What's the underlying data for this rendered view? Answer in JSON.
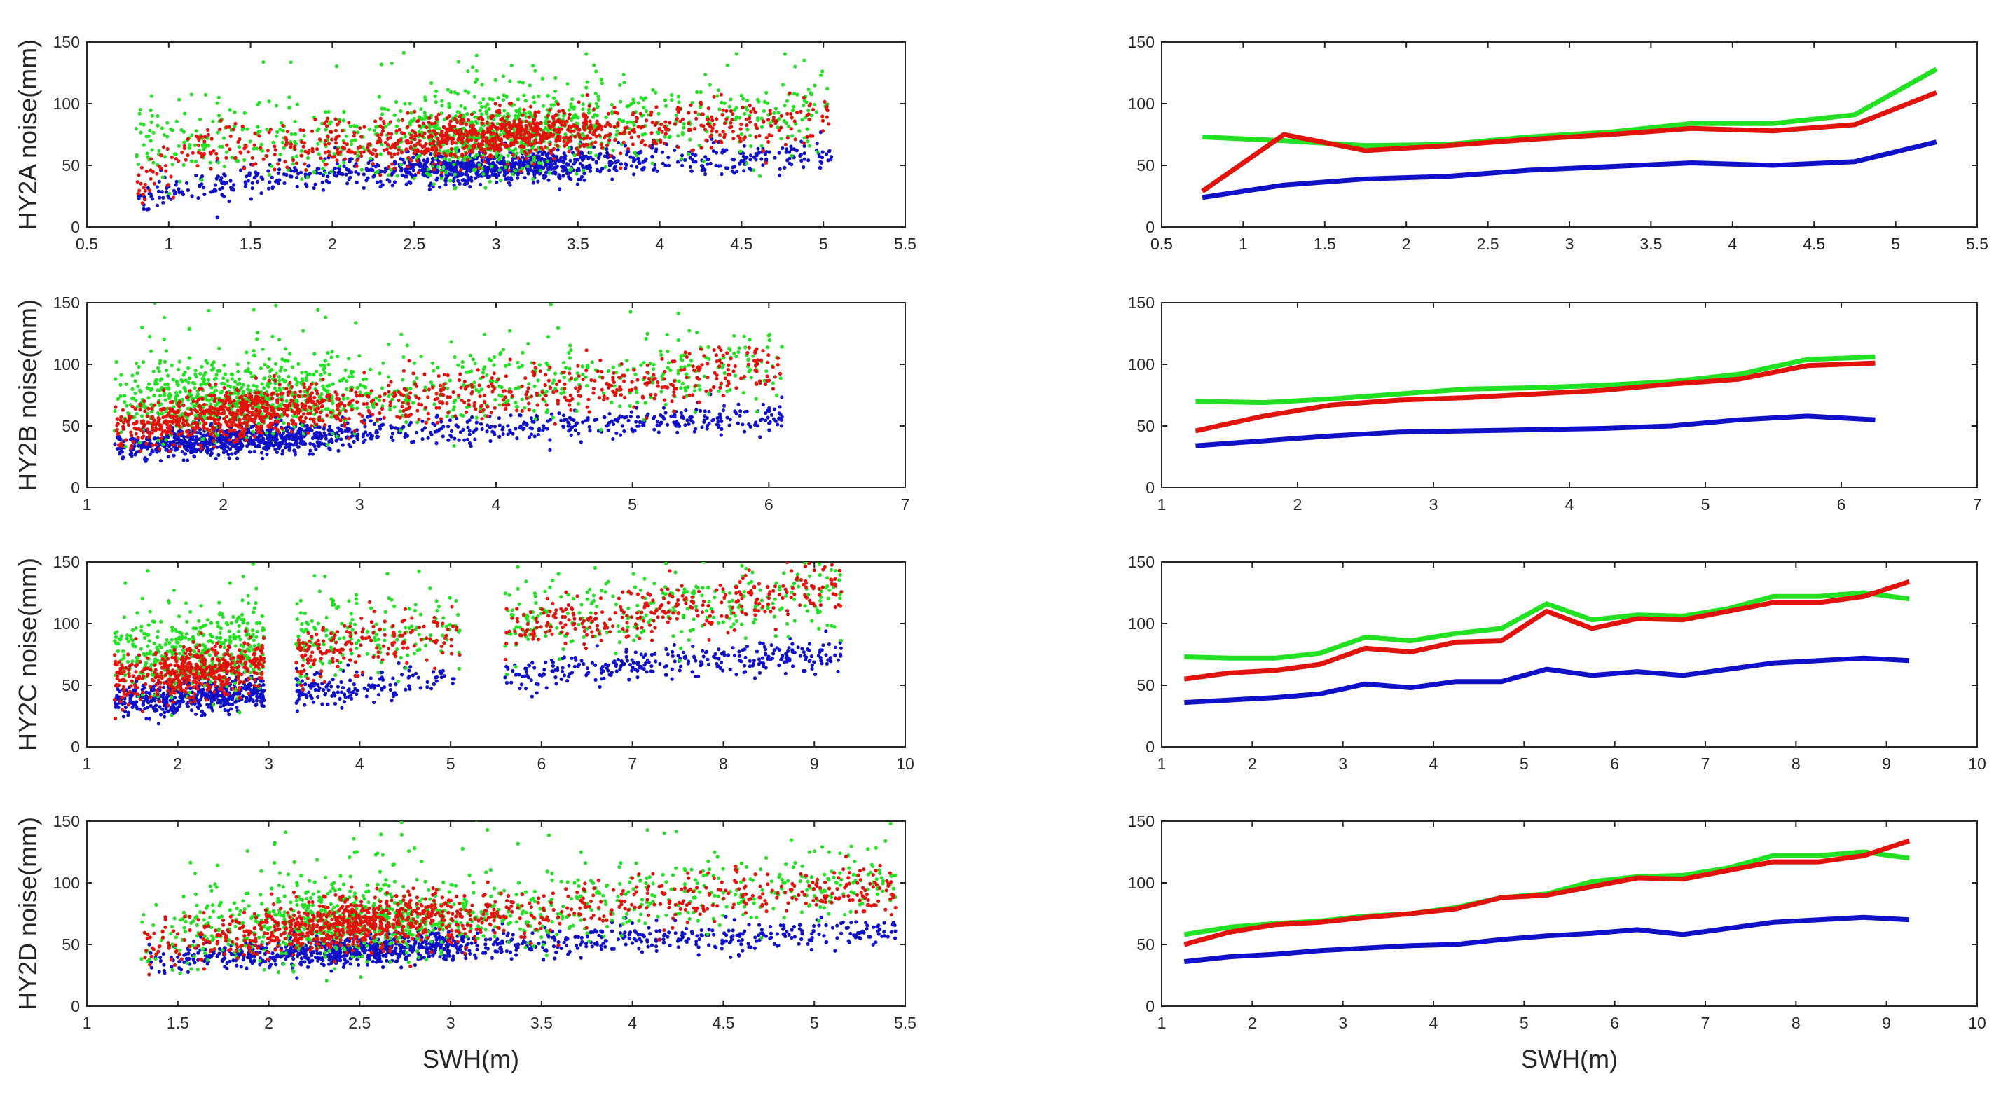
{
  "figure": {
    "xlabel_left": "SWH(m)",
    "xlabel_right": "SWH(m)"
  },
  "colors": {
    "blue": "#1010c8",
    "red": "#e0140c",
    "green": "#22e022"
  },
  "chart_data": [
    {
      "type": "scatter",
      "panel": "HY2A",
      "ylabel": "HY2A noise(mm)",
      "xlim": [
        0.5,
        5.5
      ],
      "ylim": [
        0,
        150
      ],
      "xticks": [
        "0.5",
        "1",
        "1.5",
        "2",
        "2.5",
        "3",
        "3.5",
        "4",
        "4.5",
        "5",
        "5.5"
      ],
      "yticks": [
        "0",
        "50",
        "100",
        "150"
      ],
      "x_range": [
        0.8,
        5.05
      ],
      "density_peak": 3.0,
      "series": [
        {
          "name": "blue",
          "trend": [
            [
              0.8,
              24
            ],
            [
              1.75,
              40
            ],
            [
              2.75,
              45
            ],
            [
              3.75,
              52
            ],
            [
              4.75,
              54
            ],
            [
              5.05,
              58
            ]
          ],
          "spread": 9
        },
        {
          "name": "green",
          "trend": [
            [
              0.8,
              72
            ],
            [
              1.75,
              68
            ],
            [
              2.75,
              72
            ],
            [
              3.75,
              84
            ],
            [
              4.75,
              90
            ],
            [
              5.05,
              95
            ]
          ],
          "spread": 22
        },
        {
          "name": "red",
          "trend": [
            [
              0.8,
              30
            ],
            [
              1.25,
              72
            ],
            [
              1.75,
              62
            ],
            [
              2.75,
              72
            ],
            [
              3.75,
              80
            ],
            [
              4.75,
              84
            ],
            [
              5.05,
              88
            ]
          ],
          "spread": 14
        }
      ]
    },
    {
      "type": "line",
      "panel": "HY2A",
      "xlim": [
        0.5,
        5.5
      ],
      "ylim": [
        0,
        150
      ],
      "xticks": [
        "0.5",
        "1",
        "1.5",
        "2",
        "2.5",
        "3",
        "3.5",
        "4",
        "4.5",
        "5",
        "5.5"
      ],
      "yticks": [
        "0",
        "50",
        "100",
        "150"
      ],
      "x": [
        0.75,
        1.25,
        1.75,
        2.25,
        2.75,
        3.25,
        3.75,
        4.25,
        4.75,
        5.25
      ],
      "series": [
        {
          "name": "blue",
          "values": [
            24,
            34,
            39,
            41,
            46,
            49,
            52,
            50,
            53,
            69
          ]
        },
        {
          "name": "green",
          "values": [
            73,
            70,
            66,
            67,
            73,
            77,
            84,
            84,
            91,
            128
          ]
        },
        {
          "name": "red",
          "values": [
            29,
            75,
            62,
            66,
            71,
            75,
            80,
            78,
            83,
            109
          ]
        }
      ]
    },
    {
      "type": "scatter",
      "panel": "HY2B",
      "ylabel": "HY2B noise(mm)",
      "xlim": [
        1,
        7
      ],
      "ylim": [
        0,
        150
      ],
      "xticks": [
        "1",
        "2",
        "3",
        "4",
        "5",
        "6",
        "7"
      ],
      "yticks": [
        "0",
        "50",
        "100",
        "150"
      ],
      "x_range": [
        1.2,
        6.1
      ],
      "density_peak": 2.1,
      "series": [
        {
          "name": "blue",
          "trend": [
            [
              1.2,
              32
            ],
            [
              2.25,
              38
            ],
            [
              3.25,
              44
            ],
            [
              4.25,
              48
            ],
            [
              5.25,
              52
            ],
            [
              6.1,
              56
            ]
          ],
          "spread": 8
        },
        {
          "name": "green",
          "trend": [
            [
              1.2,
              70
            ],
            [
              2.25,
              72
            ],
            [
              3.25,
              78
            ],
            [
              4.25,
              82
            ],
            [
              5.25,
              92
            ],
            [
              6.1,
              104
            ]
          ],
          "spread": 20
        },
        {
          "name": "red",
          "trend": [
            [
              1.2,
              46
            ],
            [
              2.25,
              62
            ],
            [
              3.25,
              70
            ],
            [
              4.25,
              78
            ],
            [
              5.25,
              86
            ],
            [
              6.1,
              100
            ]
          ],
          "spread": 14
        }
      ]
    },
    {
      "type": "line",
      "panel": "HY2B",
      "xlim": [
        1,
        7
      ],
      "ylim": [
        0,
        150
      ],
      "xticks": [
        "1",
        "2",
        "3",
        "4",
        "5",
        "6",
        "7"
      ],
      "yticks": [
        "0",
        "50",
        "100",
        "150"
      ],
      "x": [
        1.25,
        1.75,
        2.25,
        2.75,
        3.25,
        3.75,
        4.25,
        4.75,
        5.25,
        5.75,
        6.25
      ],
      "series": [
        {
          "name": "blue",
          "values": [
            34,
            38,
            42,
            45,
            46,
            47,
            48,
            50,
            55,
            58,
            55
          ]
        },
        {
          "name": "green",
          "values": [
            70,
            69,
            72,
            76,
            80,
            81,
            83,
            86,
            92,
            104,
            106
          ]
        },
        {
          "name": "red",
          "values": [
            46,
            58,
            67,
            71,
            73,
            76,
            79,
            84,
            88,
            99,
            101
          ]
        }
      ]
    },
    {
      "type": "scatter",
      "panel": "HY2C",
      "ylabel": "HY2C noise(mm)",
      "xlim": [
        1,
        10
      ],
      "ylim": [
        0,
        150
      ],
      "xticks": [
        "1",
        "2",
        "3",
        "4",
        "5",
        "6",
        "7",
        "8",
        "9",
        "10"
      ],
      "yticks": [
        "0",
        "50",
        "100",
        "150"
      ],
      "x_range": [
        1.3,
        9.3
      ],
      "density_peak": 2.4,
      "gaps": [
        [
          2.95,
          3.3
        ],
        [
          5.1,
          5.6
        ]
      ],
      "series": [
        {
          "name": "blue",
          "trend": [
            [
              1.3,
              36
            ],
            [
              2.5,
              40
            ],
            [
              4.25,
              48
            ],
            [
              6.25,
              60
            ],
            [
              8.25,
              70
            ],
            [
              9.3,
              72
            ]
          ],
          "spread": 9
        },
        {
          "name": "green",
          "trend": [
            [
              1.3,
              74
            ],
            [
              2.5,
              74
            ],
            [
              4.25,
              92
            ],
            [
              6.25,
              106
            ],
            [
              8.25,
              122
            ],
            [
              9.3,
              122
            ]
          ],
          "spread": 22
        },
        {
          "name": "red",
          "trend": [
            [
              1.3,
              55
            ],
            [
              2.5,
              64
            ],
            [
              4.25,
              84
            ],
            [
              6.25,
              102
            ],
            [
              8.25,
              118
            ],
            [
              9.3,
              130
            ]
          ],
          "spread": 16
        }
      ]
    },
    {
      "type": "line",
      "panel": "HY2C",
      "xlim": [
        1,
        10
      ],
      "ylim": [
        0,
        150
      ],
      "xticks": [
        "1",
        "2",
        "3",
        "4",
        "5",
        "6",
        "7",
        "8",
        "9",
        "10"
      ],
      "yticks": [
        "0",
        "50",
        "100",
        "150"
      ],
      "x": [
        1.25,
        1.75,
        2.25,
        2.75,
        3.25,
        3.75,
        4.25,
        4.75,
        5.25,
        5.75,
        6.25,
        6.75,
        7.25,
        7.75,
        8.25,
        8.75,
        9.25
      ],
      "series": [
        {
          "name": "blue",
          "values": [
            36,
            38,
            40,
            43,
            51,
            48,
            53,
            53,
            63,
            58,
            61,
            58,
            63,
            68,
            70,
            72,
            70
          ]
        },
        {
          "name": "green",
          "values": [
            73,
            72,
            72,
            76,
            89,
            86,
            92,
            96,
            116,
            103,
            107,
            106,
            112,
            122,
            122,
            125,
            120
          ]
        },
        {
          "name": "red",
          "values": [
            55,
            60,
            62,
            67,
            80,
            77,
            85,
            86,
            110,
            96,
            104,
            103,
            110,
            117,
            117,
            122,
            134
          ]
        }
      ]
    },
    {
      "type": "scatter",
      "panel": "HY2D",
      "ylabel": "HY2D noise(mm)",
      "xlim": [
        1,
        5.5
      ],
      "ylim": [
        0,
        150
      ],
      "xticks": [
        "1",
        "1.5",
        "2",
        "2.5",
        "3",
        "3.5",
        "4",
        "4.5",
        "5",
        "5.5"
      ],
      "yticks": [
        "0",
        "50",
        "100",
        "150"
      ],
      "x_range": [
        1.3,
        5.45
      ],
      "density_peak": 2.5,
      "series": [
        {
          "name": "blue",
          "trend": [
            [
              1.3,
              36
            ],
            [
              2.25,
              42
            ],
            [
              3.25,
              48
            ],
            [
              4.25,
              54
            ],
            [
              5.45,
              60
            ]
          ],
          "spread": 8
        },
        {
          "name": "green",
          "trend": [
            [
              1.3,
              58
            ],
            [
              2.25,
              66
            ],
            [
              3.25,
              76
            ],
            [
              4.25,
              90
            ],
            [
              5.45,
              102
            ]
          ],
          "spread": 20
        },
        {
          "name": "red",
          "trend": [
            [
              1.3,
              50
            ],
            [
              2.25,
              64
            ],
            [
              3.25,
              74
            ],
            [
              4.25,
              86
            ],
            [
              5.45,
              96
            ]
          ],
          "spread": 15
        }
      ]
    },
    {
      "type": "line",
      "panel": "HY2D",
      "xlim": [
        1,
        10
      ],
      "ylim": [
        0,
        150
      ],
      "xticks": [
        "1",
        "2",
        "3",
        "4",
        "5",
        "6",
        "7",
        "8",
        "9",
        "10"
      ],
      "yticks": [
        "0",
        "50",
        "100",
        "150"
      ],
      "x": [
        1.25,
        1.75,
        2.25,
        2.75,
        3.25,
        3.75,
        4.25,
        4.75,
        5.25,
        5.75,
        6.25,
        6.75,
        7.25,
        7.75,
        8.25,
        8.75,
        9.25
      ],
      "series": [
        {
          "name": "blue",
          "values": [
            36,
            40,
            42,
            45,
            47,
            49,
            50,
            54,
            57,
            59,
            62,
            58,
            63,
            68,
            70,
            72,
            70
          ]
        },
        {
          "name": "green",
          "values": [
            58,
            64,
            67,
            69,
            73,
            75,
            80,
            88,
            91,
            101,
            105,
            106,
            112,
            122,
            122,
            125,
            120
          ]
        },
        {
          "name": "red",
          "values": [
            50,
            60,
            66,
            68,
            72,
            75,
            79,
            88,
            90,
            97,
            104,
            103,
            110,
            117,
            117,
            122,
            134
          ]
        }
      ]
    }
  ]
}
